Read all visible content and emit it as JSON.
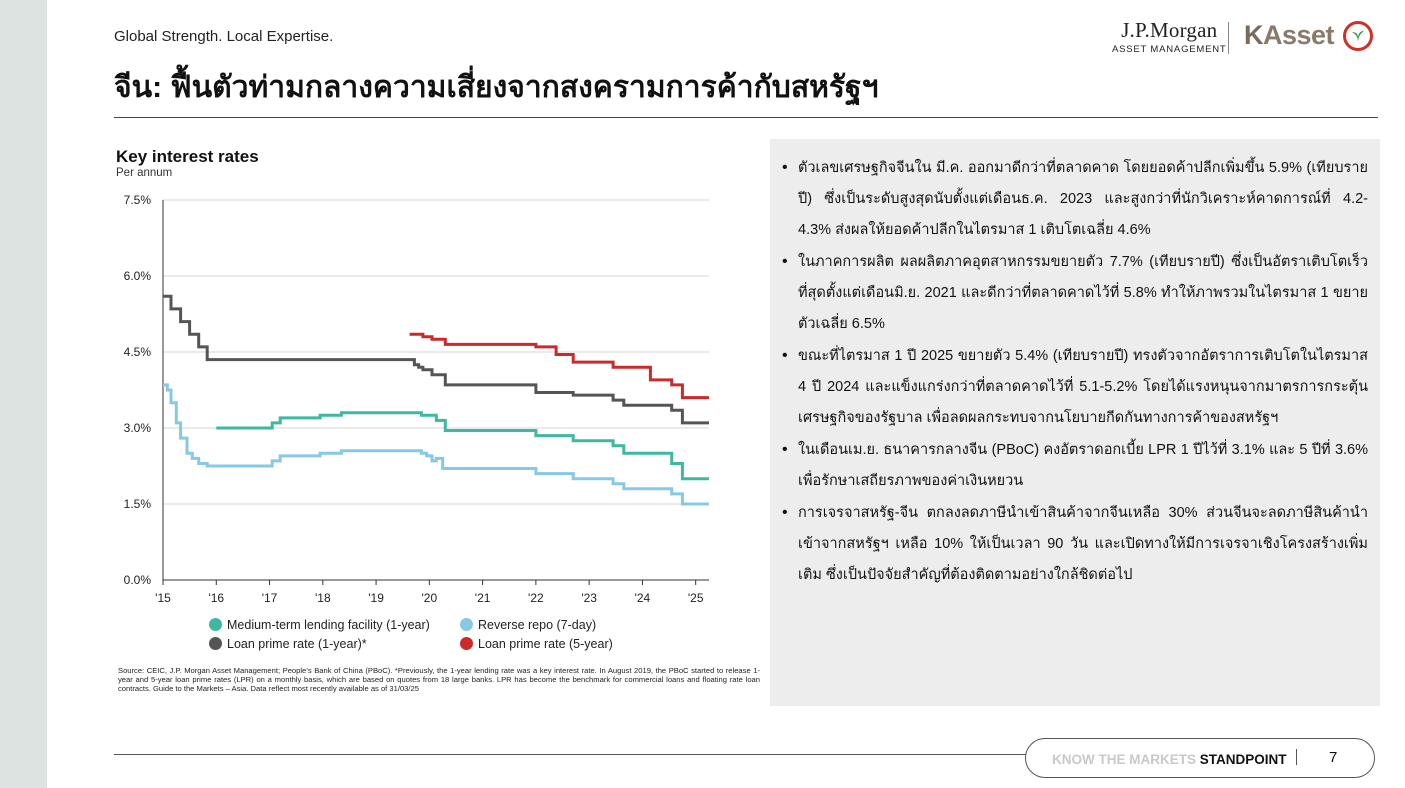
{
  "header": {
    "tagline": "Global Strength. Local Expertise.",
    "title": "จีน: ฟื้นตัวท่ามกลางความเสี่ยงจากสงครามการค้ากับสหรัฐฯ",
    "logo_jpm_name": "J.P.Morgan",
    "logo_jpm_sub": "ASSET MANAGEMENT",
    "logo_kasset_k": "K",
    "logo_kasset_rest": "Asset"
  },
  "chart_data": {
    "type": "line",
    "title": "Key interest rates",
    "subtitle": "Per annum",
    "y_ticks": [
      "7.5%",
      "6.0%",
      "4.5%",
      "3.0%",
      "1.5%",
      "0.0%"
    ],
    "x_ticks": [
      "'15",
      "'16",
      "'17",
      "'18",
      "'19",
      "'20",
      "'21",
      "'22",
      "'23",
      "'24",
      "'25"
    ],
    "ylim": [
      0,
      7.5
    ],
    "xlim": [
      2015.0,
      2025.25
    ],
    "grid": "horizontal",
    "colors": {
      "mlf": "#3fb8a0",
      "repo": "#86c8e6",
      "lpr1": "#555555",
      "lpr5": "#cc2a2a"
    },
    "series": [
      {
        "name": "Loan prime rate (1-year)*",
        "key": "lpr1",
        "x": [
          2015.0,
          2015.15,
          2015.33,
          2015.5,
          2015.67,
          2015.83,
          2019.63,
          2019.72,
          2019.8,
          2019.88,
          2020.05,
          2020.13,
          2020.3,
          2022.0,
          2022.6,
          2022.7,
          2023.45,
          2023.65,
          2024.55,
          2024.75,
          2025.25
        ],
        "y": [
          5.6,
          5.35,
          5.1,
          4.85,
          4.6,
          4.35,
          4.35,
          4.25,
          4.2,
          4.15,
          4.05,
          4.05,
          3.85,
          3.7,
          3.7,
          3.65,
          3.55,
          3.45,
          3.35,
          3.1,
          3.1
        ]
      },
      {
        "name": "Loan prime rate (5-year)",
        "key": "lpr5",
        "x": [
          2019.63,
          2019.88,
          2020.05,
          2020.3,
          2022.0,
          2022.38,
          2022.6,
          2022.7,
          2023.45,
          2024.15,
          2024.55,
          2024.75,
          2025.25
        ],
        "y": [
          4.85,
          4.8,
          4.75,
          4.65,
          4.6,
          4.45,
          4.45,
          4.3,
          4.2,
          3.95,
          3.85,
          3.6,
          3.6
        ]
      },
      {
        "name": "Medium-term lending facility (1-year)",
        "key": "mlf",
        "x": [
          2016.0,
          2017.05,
          2017.2,
          2017.95,
          2018.25,
          2018.35,
          2019.85,
          2020.13,
          2020.3,
          2022.0,
          2022.6,
          2022.7,
          2023.45,
          2023.65,
          2024.55,
          2024.75,
          2025.25
        ],
        "y": [
          3.0,
          3.1,
          3.2,
          3.25,
          3.25,
          3.3,
          3.25,
          3.15,
          2.95,
          2.85,
          2.85,
          2.75,
          2.65,
          2.5,
          2.3,
          2.0,
          2.0
        ]
      },
      {
        "name": "Reverse repo (7-day)",
        "key": "repo",
        "x": [
          2015.0,
          2015.08,
          2015.15,
          2015.25,
          2015.33,
          2015.45,
          2015.55,
          2015.67,
          2015.83,
          2017.05,
          2017.2,
          2017.95,
          2018.25,
          2018.35,
          2019.85,
          2019.95,
          2020.05,
          2020.13,
          2020.25,
          2022.0,
          2022.6,
          2022.7,
          2023.45,
          2023.65,
          2024.55,
          2024.75,
          2025.25
        ],
        "y": [
          3.85,
          3.75,
          3.5,
          3.1,
          2.8,
          2.5,
          2.4,
          2.3,
          2.25,
          2.35,
          2.45,
          2.5,
          2.5,
          2.55,
          2.5,
          2.45,
          2.35,
          2.4,
          2.2,
          2.1,
          2.1,
          2.0,
          1.9,
          1.8,
          1.7,
          1.5,
          1.5
        ]
      }
    ]
  },
  "legend": {
    "mlf": "Medium-term lending facility (1-year)",
    "repo": "Reverse repo (7-day)",
    "lpr1": "Loan prime rate (1-year)*",
    "lpr5": "Loan prime rate (5-year)"
  },
  "source": "Source: CEIC, J.P. Morgan Asset Management; People’s Bank of China (PBoC). *Previously, the 1-year lending rate was a key interest rate. In August 2019, the PBoC started to release 1-year and 5-year loan prime rates (LPR) on a monthly basis, which are based on quotes from 18 large banks. LPR has become the benchmark for commercial loans and floating rate loan contracts. Guide to the Markets – Asia. Data reflect most recently available as of 31/03/25",
  "bullets": [
    "ตัวเลขเศรษฐกิจจีนใน มี.ค. ออกมาดีกว่าที่ตลาดคาด โดยยอดค้าปลีกเพิ่มขึ้น 5.9% (เทียบรายปี) ซึ่งเป็นระดับสูงสุดนับตั้งแต่เดือนธ.ค. 2023 และสูงกว่าที่นักวิเคราะห์คาดการณ์ที่ 4.2-4.3% ส่งผลให้ยอดค้าปลีกในไตรมาส 1 เติบโตเฉลี่ย 4.6%",
    "ในภาคการผลิต ผลผลิตภาคอุตสาหกรรมขยายตัว 7.7% (เทียบรายปี) ซึ่งเป็นอัตราเติบโตเร็วที่สุดตั้งแต่เดือนมิ.ย. 2021 และดีกว่าที่ตลาดคาดไว้ที่ 5.8% ทำให้ภาพรวมในไตรมาส 1 ขยายตัวเฉลี่ย 6.5%",
    "ขณะที่ไตรมาส 1 ปี 2025 ขยายตัว 5.4% (เทียบรายปี) ทรงตัวจากอัตราการเติบโตในไตรมาส 4 ปี 2024 และแข็งแกร่งกว่าที่ตลาดคาดไว้ที่ 5.1-5.2% โดยได้แรงหนุนจากมาตรการกระตุ้นเศรษฐกิจของรัฐบาล เพื่อลดผลกระทบจากนโยบายกีดกันทางการค้าของสหรัฐฯ",
    "ในเดือนเม.ย. ธนาคารกลางจีน (PBoC) คงอัตราดอกเบี้ย LPR 1 ปีไว้ที่ 3.1% และ 5 ปีที่ 3.6% เพื่อรักษาเสถียรภาพของค่าเงินหยวน",
    "การเจรจาสหรัฐ-จีน ตกลงลดภาษีนำเข้าสินค้าจากจีนเหลือ 30% ส่วนจีนจะลดภาษีสินค้านำเข้าจากสหรัฐฯ เหลือ 10% ให้เป็นเวลา 90 วัน และเปิดทางให้มีการเจรจาเชิงโครงสร้างเพิ่มเติม ซึ่งเป็นปัจจัยสำคัญที่ต้องติดตามอย่างใกล้ชิดต่อไป"
  ],
  "footer": {
    "prefix": "KNOW THE MARKETS ",
    "emphasis": "STANDPOINT",
    "page": "7"
  }
}
